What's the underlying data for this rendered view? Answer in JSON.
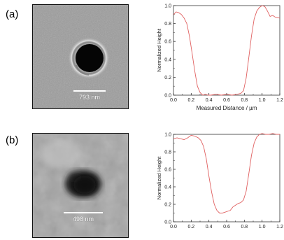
{
  "panels": [
    {
      "label": "(a)",
      "scale_bar_label": "793 nm"
    },
    {
      "label": "(b)",
      "scale_bar_label": "498 nm"
    }
  ],
  "colors": {
    "curve": "#e06060",
    "axis": "#333333",
    "scale_bar": "#ffffff"
  },
  "chart_data": [
    {
      "type": "line",
      "xlabel": "Measured Distance / µm",
      "ylabel": "Normalized Height",
      "xlim": [
        0,
        1.2
      ],
      "ylim": [
        0,
        1.0
      ],
      "xticks": [
        "0.0",
        "0.2",
        "0.4",
        "0.6",
        "0.8",
        "1.0",
        "1.2"
      ],
      "yticks": [
        "0.0",
        "0.2",
        "0.4",
        "0.6",
        "0.8",
        "1.0"
      ],
      "series": [
        {
          "x": [
            0.0,
            0.03,
            0.06,
            0.09,
            0.12,
            0.15,
            0.18,
            0.21,
            0.24,
            0.27,
            0.3,
            0.33,
            0.36,
            0.39,
            0.42,
            0.48,
            0.54,
            0.6,
            0.66,
            0.72,
            0.76,
            0.79,
            0.82,
            0.85,
            0.88,
            0.91,
            0.94,
            0.97,
            1.0,
            1.03,
            1.06,
            1.09,
            1.12,
            1.15,
            1.2
          ],
          "y": [
            0.9,
            0.93,
            0.92,
            0.9,
            0.86,
            0.8,
            0.66,
            0.47,
            0.27,
            0.1,
            0.03,
            0.0,
            0.01,
            0.0,
            0.0,
            0.01,
            0.0,
            0.01,
            0.0,
            0.01,
            0.02,
            0.05,
            0.19,
            0.42,
            0.66,
            0.85,
            0.94,
            0.98,
            1.0,
            0.99,
            0.94,
            0.88,
            0.89,
            0.87,
            0.86
          ]
        }
      ]
    },
    {
      "type": "line",
      "xlabel": "",
      "ylabel": "Normalized Height",
      "xlim": [
        0,
        1.2
      ],
      "ylim": [
        0,
        1.0
      ],
      "xticks": [
        "0.0",
        "0.2",
        "0.4",
        "0.6",
        "0.8",
        "1.0",
        "1.2"
      ],
      "yticks": [
        "0.0",
        "0.2",
        "0.4",
        "0.6",
        "0.8",
        "1.0"
      ],
      "series": [
        {
          "x": [
            0.0,
            0.04,
            0.08,
            0.12,
            0.16,
            0.2,
            0.24,
            0.28,
            0.31,
            0.34,
            0.37,
            0.4,
            0.43,
            0.46,
            0.49,
            0.52,
            0.55,
            0.58,
            0.61,
            0.64,
            0.67,
            0.7,
            0.73,
            0.76,
            0.79,
            0.82,
            0.85,
            0.88,
            0.91,
            0.94,
            0.97,
            1.0,
            1.04,
            1.08,
            1.12,
            1.16,
            1.2
          ],
          "y": [
            0.95,
            0.96,
            0.95,
            0.94,
            0.96,
            0.99,
            0.98,
            0.96,
            0.93,
            0.86,
            0.72,
            0.52,
            0.34,
            0.2,
            0.13,
            0.1,
            0.1,
            0.11,
            0.12,
            0.13,
            0.17,
            0.19,
            0.21,
            0.22,
            0.25,
            0.35,
            0.55,
            0.76,
            0.9,
            0.97,
            1.0,
            1.01,
            1.0,
            1.0,
            1.01,
            1.0,
            1.0
          ]
        }
      ]
    }
  ]
}
